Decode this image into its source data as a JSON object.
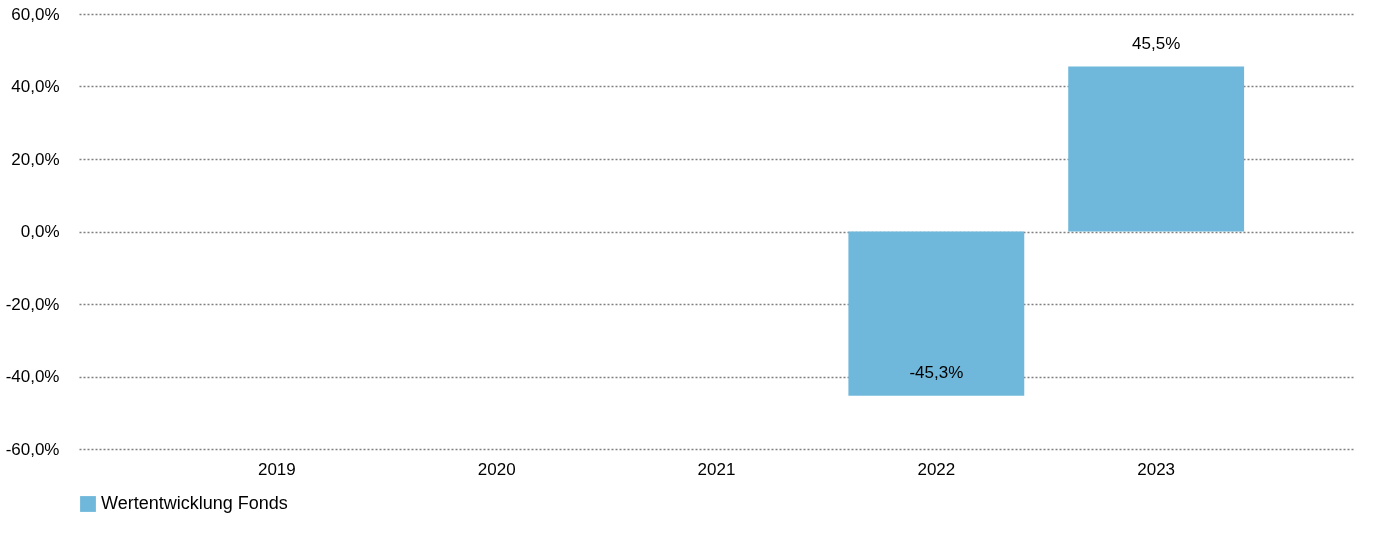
{
  "chart_data": {
    "type": "bar",
    "categories": [
      "2019",
      "2020",
      "2021",
      "2022",
      "2023"
    ],
    "series": [
      {
        "name": "Wertentwicklung Fonds",
        "color": "#6fb8db",
        "values": [
          null,
          null,
          null,
          -45.3,
          45.5
        ],
        "value_labels": [
          null,
          null,
          null,
          "-45,3%",
          "45,5%"
        ]
      }
    ],
    "ylim": [
      -60,
      60
    ],
    "yticks": [
      {
        "value": -60,
        "label": "-60,0%"
      },
      {
        "value": -40,
        "label": "-40,0%"
      },
      {
        "value": -20,
        "label": "-20,0%"
      },
      {
        "value": 0,
        "label": "0,0%"
      },
      {
        "value": 20,
        "label": "20,0%"
      },
      {
        "value": 40,
        "label": "40,0%"
      },
      {
        "value": 60,
        "label": "60,0%"
      }
    ],
    "grid": "y",
    "line_style": "dotted",
    "legend": "bottom"
  }
}
